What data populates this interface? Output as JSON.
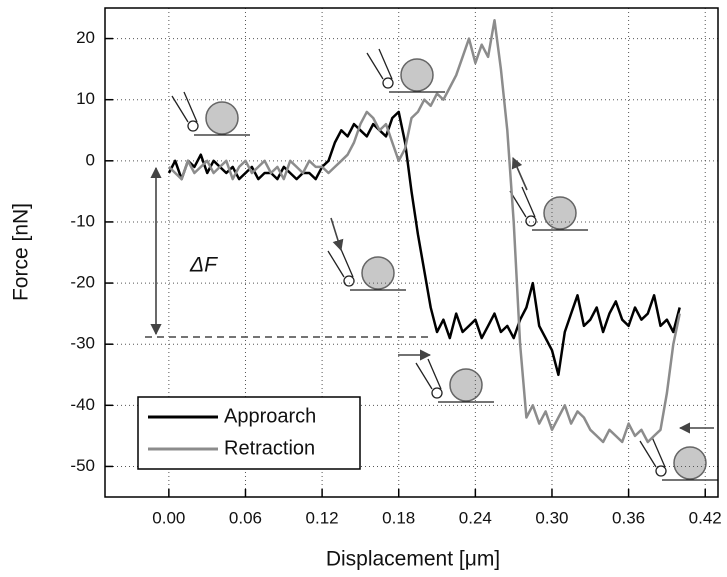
{
  "chart_data": {
    "type": "line",
    "x_label": "Displacement [μm]",
    "y_label": "Force [nN]",
    "annotation": "ΔF",
    "xlim": [
      -0.05,
      0.43
    ],
    "ylim": [
      -55,
      25
    ],
    "xticks": [
      {
        "value": 0,
        "label": "0.00"
      },
      {
        "value": 0.06,
        "label": "0.06"
      },
      {
        "value": 0.12,
        "label": "0.12"
      },
      {
        "value": 0.18,
        "label": "0.18"
      },
      {
        "value": 0.24,
        "label": "0.24"
      },
      {
        "value": 0.3,
        "label": "0.30"
      },
      {
        "value": 0.36,
        "label": "0.36"
      },
      {
        "value": 0.42,
        "label": "0.42"
      }
    ],
    "yticks": [
      20,
      10,
      0,
      -10,
      -20,
      -30,
      -40,
      -50
    ],
    "grid": true,
    "legend": "lower left",
    "series": [
      {
        "name": "Approarch",
        "color": "#000000",
        "x": [
          0,
          0.005,
          0.01,
          0.015,
          0.02,
          0.025,
          0.03,
          0.035,
          0.04,
          0.045,
          0.05,
          0.055,
          0.06,
          0.065,
          0.07,
          0.075,
          0.08,
          0.085,
          0.09,
          0.095,
          0.1,
          0.105,
          0.11,
          0.115,
          0.12,
          0.125,
          0.13,
          0.135,
          0.14,
          0.145,
          0.15,
          0.155,
          0.16,
          0.165,
          0.17,
          0.175,
          0.18,
          0.185,
          0.19,
          0.195,
          0.2,
          0.205,
          0.21,
          0.215,
          0.22,
          0.225,
          0.23,
          0.235,
          0.24,
          0.245,
          0.25,
          0.255,
          0.26,
          0.265,
          0.27,
          0.275,
          0.28,
          0.285,
          0.29,
          0.295,
          0.3,
          0.305,
          0.31,
          0.315,
          0.32,
          0.325,
          0.33,
          0.335,
          0.34,
          0.345,
          0.35,
          0.355,
          0.36,
          0.365,
          0.37,
          0.375,
          0.38,
          0.385,
          0.39,
          0.395,
          0.4
        ],
        "values": [
          -2,
          0,
          -3,
          0,
          -1,
          1,
          -2,
          0,
          -1,
          -2,
          -1,
          -3,
          -2,
          -1,
          -3,
          -2,
          -2,
          -3,
          -1,
          -2,
          -3,
          -2,
          -2,
          -3,
          -1,
          0,
          3,
          5,
          4,
          6,
          5,
          4,
          6,
          5,
          4,
          7,
          8,
          3,
          -5,
          -12,
          -18,
          -24,
          -28,
          -26,
          -29,
          -25,
          -28,
          -27,
          -26,
          -29,
          -27,
          -25,
          -28,
          -27,
          -29,
          -26,
          -24,
          -20,
          -27,
          -29,
          -31,
          -35,
          -28,
          -25,
          -22,
          -27,
          -26,
          -24,
          -28,
          -25,
          -23,
          -26,
          -27,
          -24,
          -26,
          -25,
          -22,
          -27,
          -26,
          -28,
          -24
        ]
      },
      {
        "name": "Retraction",
        "color": "#8c8c8c",
        "x": [
          0.4,
          0.395,
          0.39,
          0.385,
          0.38,
          0.375,
          0.37,
          0.365,
          0.36,
          0.355,
          0.35,
          0.345,
          0.34,
          0.335,
          0.33,
          0.325,
          0.32,
          0.315,
          0.31,
          0.305,
          0.3,
          0.295,
          0.29,
          0.285,
          0.28,
          0.275,
          0.27,
          0.265,
          0.26,
          0.255,
          0.25,
          0.245,
          0.24,
          0.235,
          0.23,
          0.225,
          0.22,
          0.215,
          0.21,
          0.205,
          0.2,
          0.195,
          0.19,
          0.185,
          0.18,
          0.175,
          0.17,
          0.165,
          0.16,
          0.155,
          0.15,
          0.145,
          0.14,
          0.135,
          0.13,
          0.125,
          0.12,
          0.115,
          0.11,
          0.105,
          0.1,
          0.095,
          0.09,
          0.085,
          0.08,
          0.075,
          0.07,
          0.065,
          0.06,
          0.055,
          0.05,
          0.045,
          0.04,
          0.035,
          0.03,
          0.025,
          0.02,
          0.015,
          0.01,
          0.005,
          0
        ],
        "values": [
          -25,
          -30,
          -38,
          -44,
          -45,
          -46,
          -44,
          -45,
          -43,
          -46,
          -45,
          -44,
          -46,
          -45,
          -44,
          -42,
          -41,
          -43,
          -40,
          -42,
          -44,
          -41,
          -43,
          -40,
          -42,
          -30,
          -10,
          5,
          15,
          23,
          17,
          19,
          16,
          20,
          17,
          14,
          12,
          10,
          11,
          9,
          10,
          8,
          7,
          2,
          0,
          3,
          6,
          5,
          7,
          8,
          6,
          3,
          1,
          0,
          -1,
          -2,
          -1,
          -1,
          0,
          -2,
          -1,
          0,
          -3,
          -1,
          -2,
          0,
          -1,
          -2,
          0,
          -1,
          -3,
          0,
          -1,
          -2,
          0,
          -1,
          -2,
          0,
          -3,
          -2,
          -1
        ]
      }
    ]
  }
}
